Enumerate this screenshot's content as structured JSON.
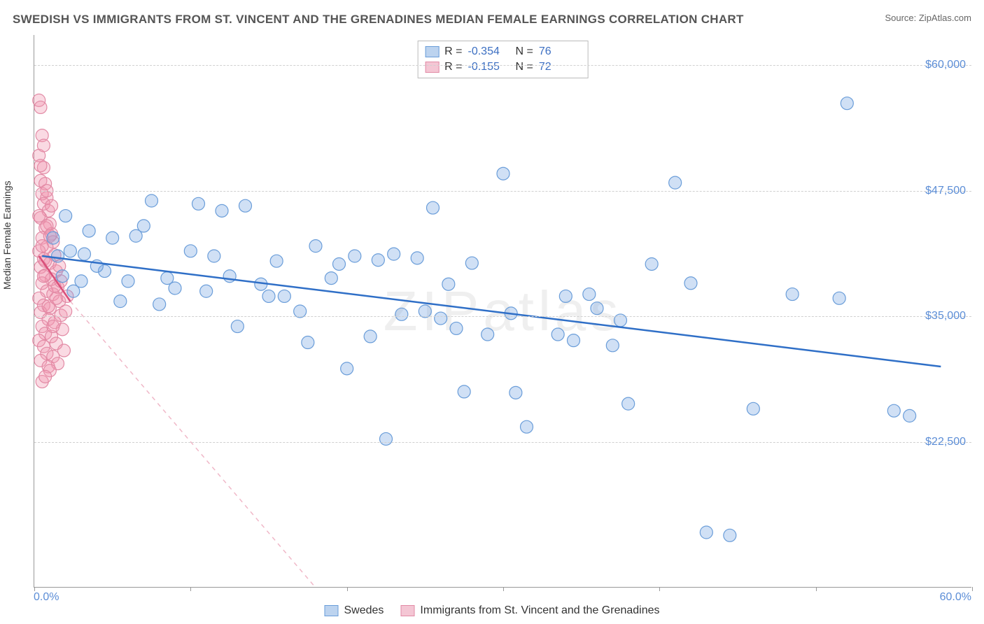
{
  "title": "SWEDISH VS IMMIGRANTS FROM ST. VINCENT AND THE GRENADINES MEDIAN FEMALE EARNINGS CORRELATION CHART",
  "source_prefix": "Source: ",
  "source_name": "ZipAtlas.com",
  "ylabel": "Median Female Earnings",
  "watermark": "ZIPatlas",
  "chart": {
    "type": "scatter",
    "xlim": [
      0,
      60
    ],
    "ylim": [
      8000,
      63000
    ],
    "yticks": [
      22500,
      35000,
      47500,
      60000
    ],
    "ytick_labels": [
      "$22,500",
      "$35,000",
      "$47,500",
      "$60,000"
    ],
    "xtick_positions": [
      0,
      10,
      20,
      30,
      40,
      50,
      60
    ],
    "xmin_label": "0.0%",
    "xmax_label": "60.0%",
    "background_color": "#ffffff",
    "grid_color": "#d0d0d0",
    "point_radius": 9,
    "point_stroke_width": 1.2,
    "trend_line_width": 2.5,
    "series": [
      {
        "name": "Swedes",
        "color_fill": "rgba(120,165,225,0.35)",
        "color_stroke": "#6a9dd9",
        "swatch_fill": "#bcd3ef",
        "swatch_border": "#6a9dd9",
        "r_value": "-0.354",
        "n_value": "76",
        "trend": {
          "x1": 0.5,
          "y1": 41000,
          "x2": 58,
          "y2": 30000,
          "dashed": false,
          "color": "#2f6fc7"
        },
        "points": [
          [
            1.2,
            42800
          ],
          [
            1.5,
            41000
          ],
          [
            1.8,
            39000
          ],
          [
            2.0,
            45000
          ],
          [
            2.3,
            41500
          ],
          [
            2.5,
            37500
          ],
          [
            3.0,
            38500
          ],
          [
            3.5,
            43500
          ],
          [
            4.5,
            39500
          ],
          [
            5.0,
            42800
          ],
          [
            5.5,
            36500
          ],
          [
            6.0,
            38500
          ],
          [
            6.5,
            43000
          ],
          [
            7.0,
            44000
          ],
          [
            7.5,
            46500
          ],
          [
            8.0,
            36200
          ],
          [
            8.5,
            38800
          ],
          [
            9.0,
            37800
          ],
          [
            10.0,
            41500
          ],
          [
            10.5,
            46200
          ],
          [
            11.0,
            37500
          ],
          [
            12.0,
            45500
          ],
          [
            13.0,
            34000
          ],
          [
            13.5,
            46000
          ],
          [
            14.5,
            38200
          ],
          [
            15.0,
            37000
          ],
          [
            15.5,
            40500
          ],
          [
            16.0,
            37000
          ],
          [
            17.0,
            35500
          ],
          [
            17.5,
            32400
          ],
          [
            18.0,
            42000
          ],
          [
            19.0,
            38800
          ],
          [
            19.5,
            40200
          ],
          [
            20.0,
            29800
          ],
          [
            20.5,
            41000
          ],
          [
            21.5,
            33000
          ],
          [
            22.0,
            40600
          ],
          [
            22.5,
            22800
          ],
          [
            23.0,
            41200
          ],
          [
            23.5,
            35200
          ],
          [
            24.5,
            40800
          ],
          [
            25.0,
            35500
          ],
          [
            25.5,
            45800
          ],
          [
            26.0,
            34800
          ],
          [
            26.5,
            38200
          ],
          [
            27.0,
            33800
          ],
          [
            27.5,
            27500
          ],
          [
            28.0,
            40300
          ],
          [
            29.0,
            33200
          ],
          [
            30.0,
            49200
          ],
          [
            30.5,
            35300
          ],
          [
            30.8,
            27400
          ],
          [
            31.5,
            24000
          ],
          [
            33.5,
            33200
          ],
          [
            34.0,
            37000
          ],
          [
            34.5,
            32600
          ],
          [
            35.5,
            37200
          ],
          [
            36.0,
            35800
          ],
          [
            37.0,
            32100
          ],
          [
            37.5,
            34600
          ],
          [
            38.0,
            26300
          ],
          [
            39.5,
            40200
          ],
          [
            41.0,
            48300
          ],
          [
            42.0,
            38300
          ],
          [
            43.0,
            13500
          ],
          [
            44.5,
            13200
          ],
          [
            46.0,
            25800
          ],
          [
            48.5,
            37200
          ],
          [
            51.5,
            36800
          ],
          [
            52.0,
            56200
          ],
          [
            55.0,
            25600
          ],
          [
            56.0,
            25100
          ],
          [
            3.2,
            41200
          ],
          [
            4.0,
            40000
          ],
          [
            11.5,
            41000
          ],
          [
            12.5,
            39000
          ]
        ]
      },
      {
        "name": "Immigrants from St. Vincent and the Grenadines",
        "color_fill": "rgba(240,150,175,0.35)",
        "color_stroke": "#e28aa5",
        "swatch_fill": "#f4c6d4",
        "swatch_border": "#e28aa5",
        "r_value": "-0.155",
        "n_value": "72",
        "trend": {
          "x1": 0.3,
          "y1": 41000,
          "x2": 2.3,
          "y2": 36500,
          "dashed": false,
          "color": "#d94f7a"
        },
        "trend_extended": {
          "x1": 2.3,
          "y1": 36500,
          "x2": 18,
          "y2": 8000,
          "dashed": true,
          "color": "#f0b8c8"
        },
        "points": [
          [
            0.3,
            56500
          ],
          [
            0.4,
            55800
          ],
          [
            0.5,
            53000
          ],
          [
            0.3,
            51000
          ],
          [
            0.6,
            49800
          ],
          [
            0.4,
            48500
          ],
          [
            0.7,
            48200
          ],
          [
            0.5,
            47200
          ],
          [
            0.8,
            46800
          ],
          [
            0.6,
            46200
          ],
          [
            0.9,
            45500
          ],
          [
            0.4,
            44800
          ],
          [
            1.0,
            44200
          ],
          [
            0.7,
            43800
          ],
          [
            1.1,
            43200
          ],
          [
            0.5,
            42800
          ],
          [
            1.2,
            42400
          ],
          [
            0.8,
            41900
          ],
          [
            0.3,
            41500
          ],
          [
            1.3,
            41100
          ],
          [
            0.6,
            40700
          ],
          [
            1.0,
            40300
          ],
          [
            0.4,
            39900
          ],
          [
            1.4,
            39500
          ],
          [
            0.7,
            39100
          ],
          [
            1.1,
            38700
          ],
          [
            0.5,
            38300
          ],
          [
            1.5,
            37900
          ],
          [
            0.8,
            37500
          ],
          [
            1.2,
            37200
          ],
          [
            0.3,
            36800
          ],
          [
            1.6,
            36500
          ],
          [
            0.6,
            36100
          ],
          [
            1.0,
            35800
          ],
          [
            0.4,
            35400
          ],
          [
            1.7,
            35100
          ],
          [
            0.9,
            34700
          ],
          [
            1.3,
            34400
          ],
          [
            0.5,
            34000
          ],
          [
            1.8,
            33700
          ],
          [
            0.7,
            33300
          ],
          [
            1.1,
            33000
          ],
          [
            0.3,
            32600
          ],
          [
            1.4,
            32300
          ],
          [
            0.6,
            32000
          ],
          [
            1.9,
            31600
          ],
          [
            0.8,
            31300
          ],
          [
            1.2,
            31000
          ],
          [
            0.4,
            30600
          ],
          [
            1.5,
            30300
          ],
          [
            0.9,
            30000
          ],
          [
            1.0,
            29600
          ],
          [
            2.0,
            35500
          ],
          [
            2.1,
            37000
          ],
          [
            0.5,
            28500
          ],
          [
            0.7,
            29000
          ],
          [
            1.3,
            38000
          ],
          [
            1.6,
            40000
          ],
          [
            0.8,
            44000
          ],
          [
            1.1,
            46000
          ],
          [
            0.4,
            50000
          ],
          [
            0.6,
            52000
          ],
          [
            0.9,
            36000
          ],
          [
            1.2,
            34000
          ],
          [
            0.5,
            42000
          ],
          [
            0.7,
            40500
          ],
          [
            1.4,
            36800
          ],
          [
            1.7,
            38500
          ],
          [
            0.3,
            45000
          ],
          [
            0.6,
            39000
          ],
          [
            1.0,
            43000
          ],
          [
            0.8,
            47500
          ]
        ]
      }
    ]
  },
  "stats_legend": {
    "r_label": "R =",
    "n_label": "N ="
  },
  "bottom_legend_labels": [
    "Swedes",
    "Immigrants from St. Vincent and the Grenadines"
  ]
}
